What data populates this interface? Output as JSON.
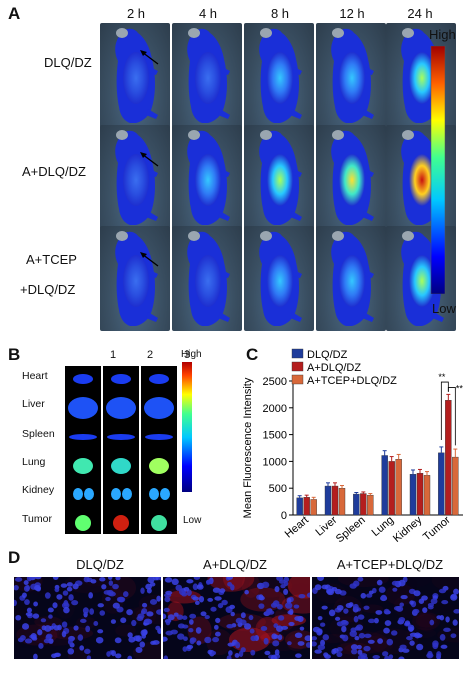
{
  "panelA": {
    "letter": "A",
    "time_labels": [
      "2 h",
      "4 h",
      "8 h",
      "12 h",
      "24 h"
    ],
    "row_labels": [
      "DLQ/DZ",
      "A+DLQ/DZ",
      "A+TCEP",
      "+DLQ/DZ"
    ],
    "scale_high": "High",
    "scale_low": "Low"
  },
  "panelB": {
    "letter": "B",
    "columns": [
      "1",
      "2",
      "3"
    ],
    "organs": [
      "Heart",
      "Liver",
      "Spleen",
      "Lung",
      "Kidney",
      "Tumor"
    ],
    "scale_high": "High",
    "scale_low": "Low"
  },
  "panelC": {
    "letter": "C",
    "chart_data": {
      "type": "bar",
      "categories": [
        "Heart",
        "Liver",
        "Spleen",
        "Lung",
        "Kidney",
        "Tumor"
      ],
      "series": [
        {
          "name": "DLQ/DZ",
          "values": [
            320,
            540,
            390,
            1110,
            760,
            1160
          ],
          "errors": [
            40,
            60,
            30,
            90,
            80,
            110
          ],
          "color": "#1f3c9b"
        },
        {
          "name": "A+DLQ/DZ",
          "values": [
            330,
            540,
            400,
            1000,
            780,
            2140
          ],
          "errors": [
            40,
            60,
            30,
            90,
            70,
            110
          ],
          "color": "#b41e1e"
        },
        {
          "name": "A+TCEP+DLQ/DZ",
          "values": [
            290,
            500,
            370,
            1040,
            740,
            1080
          ],
          "errors": [
            40,
            50,
            30,
            90,
            70,
            150
          ],
          "color": "#d8683a"
        }
      ],
      "ylabel": "Mean Fluorescence Intensity",
      "ylim": [
        0,
        2500
      ],
      "yticks": [
        0,
        500,
        1000,
        1500,
        2000,
        2500
      ],
      "significance": [
        "**",
        "**"
      ],
      "legend_position": "top-left"
    }
  },
  "panelD": {
    "letter": "D",
    "labels": [
      "DLQ/DZ",
      "A+DLQ/DZ",
      "A+TCEP+DLQ/DZ"
    ]
  },
  "colors": {
    "low": "#1a1aa0",
    "mid": "#22c0ff",
    "high": "#e0201a"
  }
}
